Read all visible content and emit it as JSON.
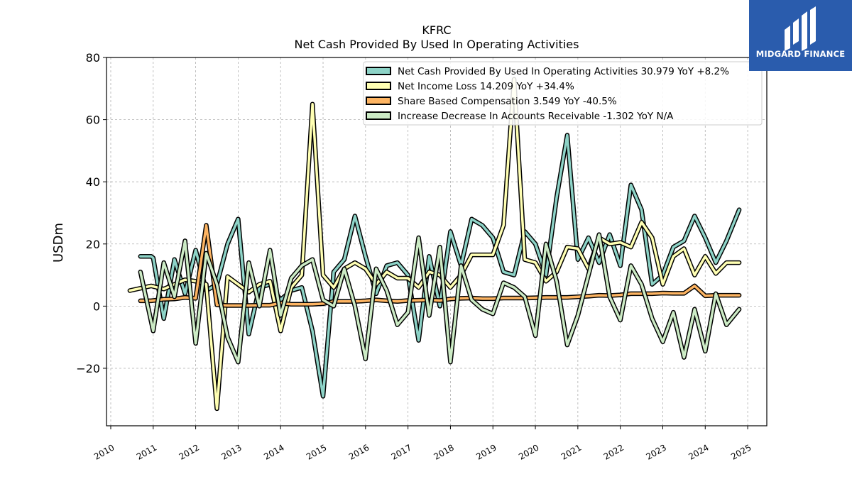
{
  "chart_data": {
    "type": "line",
    "title": "KFRC",
    "subtitle": "Net Cash Provided By Used In Operating Activities",
    "ylabel": "USDm",
    "xlabel": "",
    "xlim": [
      2009.9,
      2025.45
    ],
    "ylim": [
      -38.5,
      80
    ],
    "yticks": [
      -20,
      0,
      20,
      40,
      60,
      80
    ],
    "ytick_labels": [
      "−20",
      "0",
      "20",
      "40",
      "60",
      "80"
    ],
    "xticks": [
      2010,
      2011,
      2012,
      2013,
      2014,
      2015,
      2016,
      2017,
      2018,
      2019,
      2020,
      2021,
      2022,
      2023,
      2024,
      2025
    ],
    "xtick_labels": [
      "2010",
      "2011",
      "2012",
      "2013",
      "2014",
      "2015",
      "2016",
      "2017",
      "2018",
      "2019",
      "2020",
      "2021",
      "2022",
      "2023",
      "2024",
      "2025"
    ],
    "grid": true,
    "legend_position": "top-right",
    "series": [
      {
        "name": "Net Cash Provided By Used In Operating Activities",
        "legend_label": "Net Cash Provided By Used In Operating Activities  30.979 YoY +8.2%",
        "color": "#8dd3c7",
        "points": [
          [
            2010.7,
            16
          ],
          [
            2010.95,
            16
          ],
          [
            2011.0,
            15.5
          ],
          [
            2011.25,
            -4
          ],
          [
            2011.5,
            15
          ],
          [
            2011.75,
            4
          ],
          [
            2012.0,
            18
          ],
          [
            2012.25,
            5
          ],
          [
            2012.5,
            7
          ],
          [
            2012.75,
            20
          ],
          [
            2013.0,
            28
          ],
          [
            2013.25,
            -9
          ],
          [
            2013.5,
            6
          ],
          [
            2013.75,
            7
          ],
          [
            2014.0,
            2
          ],
          [
            2014.25,
            5
          ],
          [
            2014.5,
            6
          ],
          [
            2014.75,
            -8
          ],
          [
            2015.0,
            -29
          ],
          [
            2015.25,
            11
          ],
          [
            2015.5,
            15
          ],
          [
            2015.75,
            29
          ],
          [
            2016.0,
            16
          ],
          [
            2016.25,
            4
          ],
          [
            2016.5,
            13
          ],
          [
            2016.75,
            14
          ],
          [
            2017.0,
            10
          ],
          [
            2017.25,
            -11
          ],
          [
            2017.5,
            16
          ],
          [
            2017.75,
            0
          ],
          [
            2018.0,
            24
          ],
          [
            2018.25,
            13
          ],
          [
            2018.5,
            28
          ],
          [
            2018.75,
            26
          ],
          [
            2019.0,
            22
          ],
          [
            2019.25,
            11
          ],
          [
            2019.5,
            10
          ],
          [
            2019.75,
            24
          ],
          [
            2020.0,
            20
          ],
          [
            2020.25,
            10
          ],
          [
            2020.5,
            35
          ],
          [
            2020.75,
            55
          ],
          [
            2021.0,
            15
          ],
          [
            2021.25,
            22
          ],
          [
            2021.5,
            14
          ],
          [
            2021.75,
            23
          ],
          [
            2022.0,
            13
          ],
          [
            2022.25,
            39
          ],
          [
            2022.5,
            31
          ],
          [
            2022.75,
            7
          ],
          [
            2023.0,
            10
          ],
          [
            2023.25,
            19
          ],
          [
            2023.5,
            21
          ],
          [
            2023.75,
            29
          ],
          [
            2024.0,
            22
          ],
          [
            2024.25,
            14
          ],
          [
            2024.5,
            21
          ],
          [
            2024.8,
            31
          ]
        ]
      },
      {
        "name": "Net Income Loss",
        "legend_label": "Net Income Loss  14.209 YoY +34.4%",
        "color": "#ffffb3",
        "points": [
          [
            2010.45,
            5
          ],
          [
            2010.95,
            6.5
          ],
          [
            2011.25,
            5.5
          ],
          [
            2011.5,
            7
          ],
          [
            2011.75,
            8.5
          ],
          [
            2012.0,
            8
          ],
          [
            2012.25,
            7
          ],
          [
            2012.5,
            -33
          ],
          [
            2012.75,
            9.5
          ],
          [
            2013.0,
            7
          ],
          [
            2013.25,
            4.5
          ],
          [
            2013.5,
            7
          ],
          [
            2013.75,
            8
          ],
          [
            2014.0,
            -8
          ],
          [
            2014.25,
            6
          ],
          [
            2014.5,
            10
          ],
          [
            2014.75,
            65
          ],
          [
            2015.0,
            10
          ],
          [
            2015.25,
            6
          ],
          [
            2015.5,
            12
          ],
          [
            2015.75,
            14
          ],
          [
            2016.0,
            12
          ],
          [
            2016.25,
            7
          ],
          [
            2016.5,
            11
          ],
          [
            2016.75,
            9
          ],
          [
            2017.0,
            9
          ],
          [
            2017.25,
            6
          ],
          [
            2017.5,
            11
          ],
          [
            2017.75,
            10
          ],
          [
            2018.0,
            6
          ],
          [
            2018.25,
            10
          ],
          [
            2018.5,
            16.5
          ],
          [
            2018.75,
            16.5
          ],
          [
            2019.0,
            16.5
          ],
          [
            2019.25,
            26
          ],
          [
            2019.5,
            73
          ],
          [
            2019.75,
            15
          ],
          [
            2020.0,
            14
          ],
          [
            2020.25,
            8
          ],
          [
            2020.5,
            11
          ],
          [
            2020.75,
            19
          ],
          [
            2021.0,
            18.5
          ],
          [
            2021.25,
            12
          ],
          [
            2021.5,
            22
          ],
          [
            2021.75,
            20
          ],
          [
            2022.0,
            20.5
          ],
          [
            2022.25,
            19
          ],
          [
            2022.5,
            27
          ],
          [
            2022.75,
            22
          ],
          [
            2023.0,
            7
          ],
          [
            2023.25,
            16
          ],
          [
            2023.5,
            18.5
          ],
          [
            2023.75,
            10
          ],
          [
            2024.0,
            16
          ],
          [
            2024.25,
            10.5
          ],
          [
            2024.5,
            14
          ],
          [
            2024.8,
            14
          ]
        ]
      },
      {
        "name": "Share Based Compensation",
        "legend_label": "Share Based Compensation  3.549 YoY -40.5%",
        "color": "#fdb462",
        "points": [
          [
            2010.7,
            1.7
          ],
          [
            2010.95,
            1.7
          ],
          [
            2011.25,
            2.2
          ],
          [
            2011.5,
            2.3
          ],
          [
            2011.75,
            2.8
          ],
          [
            2012.0,
            2.5
          ],
          [
            2012.25,
            26
          ],
          [
            2012.5,
            0.4
          ],
          [
            2012.75,
            0.2
          ],
          [
            2013.0,
            0.2
          ],
          [
            2013.25,
            0.2
          ],
          [
            2013.5,
            0.3
          ],
          [
            2013.75,
            0.3
          ],
          [
            2014.0,
            1
          ],
          [
            2014.25,
            0.6
          ],
          [
            2014.5,
            0.6
          ],
          [
            2014.75,
            0.6
          ],
          [
            2015.0,
            0.8
          ],
          [
            2015.25,
            1.5
          ],
          [
            2015.5,
            1.5
          ],
          [
            2015.75,
            1.5
          ],
          [
            2016.0,
            1.7
          ],
          [
            2016.25,
            2
          ],
          [
            2016.5,
            1.7
          ],
          [
            2016.75,
            1.5
          ],
          [
            2017.0,
            1.8
          ],
          [
            2017.25,
            1.9
          ],
          [
            2017.5,
            2
          ],
          [
            2017.75,
            1.8
          ],
          [
            2018.0,
            2.3
          ],
          [
            2018.25,
            2.5
          ],
          [
            2018.5,
            2.6
          ],
          [
            2018.75,
            2.4
          ],
          [
            2019.0,
            2.4
          ],
          [
            2019.25,
            2.6
          ],
          [
            2019.5,
            2.6
          ],
          [
            2019.75,
            2.6
          ],
          [
            2020.0,
            2.7
          ],
          [
            2020.25,
            2.8
          ],
          [
            2020.5,
            2.8
          ],
          [
            2020.75,
            2.8
          ],
          [
            2021.0,
            3
          ],
          [
            2021.25,
            3.2
          ],
          [
            2021.5,
            3.5
          ],
          [
            2021.75,
            3.4
          ],
          [
            2022.0,
            3.6
          ],
          [
            2022.25,
            4
          ],
          [
            2022.5,
            4
          ],
          [
            2022.75,
            4
          ],
          [
            2023.0,
            4.2
          ],
          [
            2023.25,
            4.1
          ],
          [
            2023.5,
            4.1
          ],
          [
            2023.75,
            6.5
          ],
          [
            2024.0,
            3.3
          ],
          [
            2024.25,
            3.5
          ],
          [
            2024.5,
            3.5
          ],
          [
            2024.8,
            3.5
          ]
        ]
      },
      {
        "name": "Increase Decrease In Accounts Receivable",
        "legend_label": "Increase Decrease In Accounts Receivable  -1.302 YoY N/A",
        "color": "#ccebc5",
        "points": [
          [
            2010.7,
            11
          ],
          [
            2011.0,
            -8
          ],
          [
            2011.25,
            14
          ],
          [
            2011.5,
            3
          ],
          [
            2011.75,
            21
          ],
          [
            2012.0,
            -12
          ],
          [
            2012.25,
            17
          ],
          [
            2012.5,
            7
          ],
          [
            2012.75,
            -10
          ],
          [
            2013.0,
            -18
          ],
          [
            2013.25,
            14
          ],
          [
            2013.5,
            0
          ],
          [
            2013.75,
            18
          ],
          [
            2014.0,
            -3
          ],
          [
            2014.25,
            9
          ],
          [
            2014.5,
            13
          ],
          [
            2014.75,
            15
          ],
          [
            2015.0,
            2
          ],
          [
            2015.25,
            0
          ],
          [
            2015.5,
            12
          ],
          [
            2015.75,
            0
          ],
          [
            2016.0,
            -17
          ],
          [
            2016.25,
            12
          ],
          [
            2016.5,
            5
          ],
          [
            2016.75,
            -6
          ],
          [
            2017.0,
            -2
          ],
          [
            2017.25,
            22
          ],
          [
            2017.5,
            -3
          ],
          [
            2017.75,
            19
          ],
          [
            2018.0,
            -18
          ],
          [
            2018.25,
            13
          ],
          [
            2018.5,
            2
          ],
          [
            2018.75,
            -1
          ],
          [
            2019.0,
            -2.5
          ],
          [
            2019.25,
            7.5
          ],
          [
            2019.5,
            6
          ],
          [
            2019.75,
            3
          ],
          [
            2020.0,
            -9.5
          ],
          [
            2020.25,
            20
          ],
          [
            2020.5,
            8
          ],
          [
            2020.75,
            -12.5
          ],
          [
            2021.0,
            -3
          ],
          [
            2021.25,
            10
          ],
          [
            2021.5,
            23
          ],
          [
            2021.75,
            3
          ],
          [
            2022.0,
            -4.5
          ],
          [
            2022.25,
            13
          ],
          [
            2022.5,
            7
          ],
          [
            2022.75,
            -4
          ],
          [
            2023.0,
            -11.5
          ],
          [
            2023.25,
            -2
          ],
          [
            2023.5,
            -16.5
          ],
          [
            2023.75,
            -1
          ],
          [
            2024.0,
            -14.5
          ],
          [
            2024.25,
            4
          ],
          [
            2024.5,
            -6
          ],
          [
            2024.8,
            -1
          ]
        ]
      }
    ]
  },
  "logo": {
    "text": "MIDGARD FINANCE"
  }
}
